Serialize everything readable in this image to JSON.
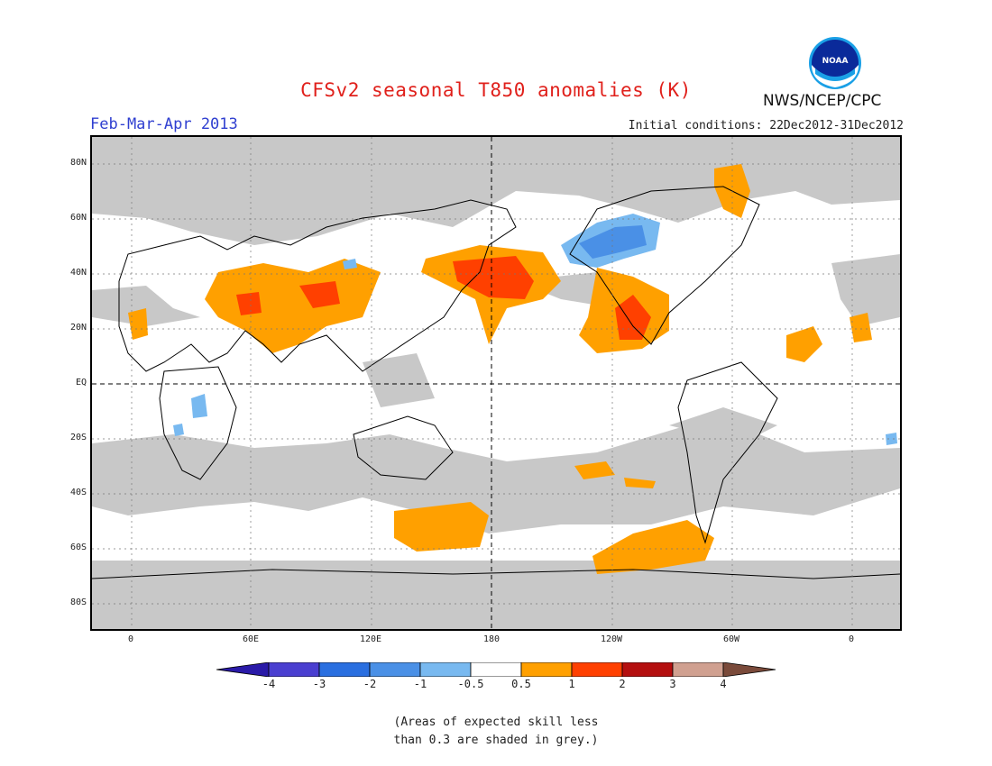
{
  "header": {
    "title": "CFSv2 seasonal T850 anomalies (K)",
    "period": "Feb-Mar-Apr 2013",
    "initial_conditions": "Initial conditions: 22Dec2012-31Dec2012",
    "agency": "NWS/NCEP/CPC",
    "logo_text": "NOAA"
  },
  "map": {
    "lat_labels": [
      "80N",
      "60N",
      "40N",
      "20N",
      "EQ",
      "20S",
      "40S",
      "60S",
      "80S"
    ],
    "lon_labels": [
      "0",
      "60E",
      "120E",
      "180",
      "120W",
      "60W",
      "0"
    ],
    "colors": {
      "skill_grey": "#c8c8c8",
      "anom_0_5_to_1": "#ffa000",
      "anom_1_to_2": "#ff4000",
      "anom_neg_0_5_to_neg_1": "#78b9f0",
      "anom_neg_1_to_neg_2": "#4a90e6"
    }
  },
  "colorbar": {
    "labels": [
      "-4",
      "-3",
      "-2",
      "-1",
      "-0.5",
      "0.5",
      "1",
      "2",
      "3",
      "4"
    ],
    "colors": [
      "#2a1aa8",
      "#4a3fd0",
      "#2a6fe0",
      "#4a90e6",
      "#78b9f0",
      "#ffffff",
      "#ffa000",
      "#ff4000",
      "#b40f0f",
      "#d0a090",
      "#7a4a3a"
    ]
  },
  "footnote": {
    "line1": "(Areas of expected skill less",
    "line2": "than 0.3 are shaded in grey.)"
  }
}
